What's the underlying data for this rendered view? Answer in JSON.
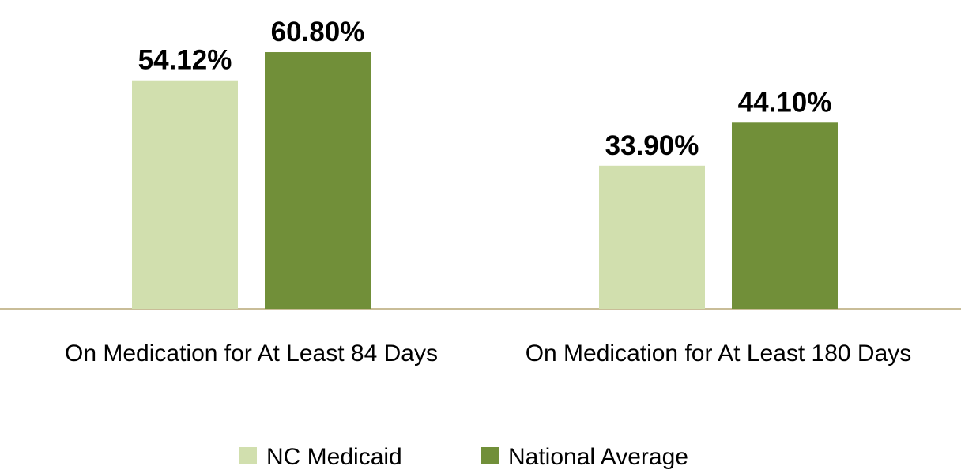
{
  "chart_data": {
    "type": "bar",
    "categories": [
      "On Medication for At Least 84 Days",
      "On Medication for At Least 180 Days"
    ],
    "series": [
      {
        "name": "NC Medicaid",
        "color": "#d1dfae",
        "values": [
          54.12,
          33.9
        ],
        "value_labels": [
          "54.12%",
          "33.90%"
        ]
      },
      {
        "name": "National Average",
        "color": "#718f39",
        "values": [
          60.8,
          44.1
        ],
        "value_labels": [
          "60.80%",
          "44.10%"
        ]
      }
    ],
    "legend": "bottom"
  }
}
